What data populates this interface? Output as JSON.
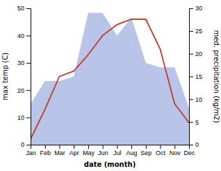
{
  "chart_data": {
    "type": "line",
    "categories": [
      "Jan",
      "Feb",
      "Mar",
      "Apr",
      "May",
      "Jun",
      "Jul",
      "Aug",
      "Sep",
      "Oct",
      "Nov",
      "Dec"
    ],
    "xlabel": "date (month)",
    "ylabel": "max temp (C)",
    "y2label": "med. precipitation (kg/m2)",
    "ylim": [
      0,
      50
    ],
    "yticks": [
      0,
      10,
      20,
      30,
      40,
      50
    ],
    "y2lim": [
      0,
      30
    ],
    "y2ticks": [
      0,
      5,
      10,
      15,
      20,
      25,
      30
    ],
    "grid": false,
    "series": [
      {
        "type": "area",
        "axis": "y2",
        "color": "#b8c4e8",
        "values": [
          9,
          14,
          14,
          15,
          29,
          29,
          24,
          28,
          18,
          17,
          17,
          8
        ]
      },
      {
        "type": "line",
        "axis": "y",
        "color": "#c0392b",
        "values": [
          2,
          13,
          25,
          27,
          33,
          40,
          44,
          46,
          46,
          35,
          15,
          8
        ]
      }
    ]
  }
}
